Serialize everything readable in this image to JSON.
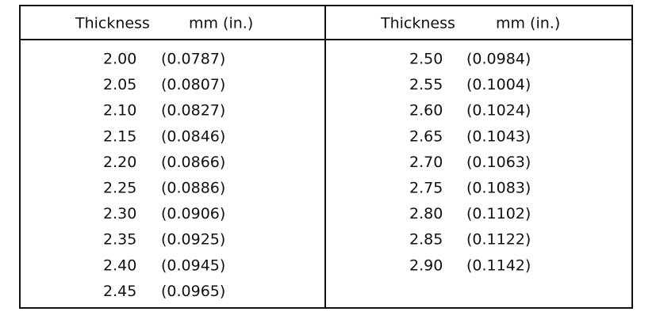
{
  "table": {
    "columns": [
      {
        "header": [
          "Thickness",
          "mm (in.)"
        ],
        "rows": [
          [
            "2.00",
            "(0.0787)"
          ],
          [
            "2.05",
            "(0.0807)"
          ],
          [
            "2.10",
            "(0.0827)"
          ],
          [
            "2.15",
            "(0.0846)"
          ],
          [
            "2.20",
            "(0.0866)"
          ],
          [
            "2.25",
            "(0.0886)"
          ],
          [
            "2.30",
            "(0.0906)"
          ],
          [
            "2.35",
            "(0.0925)"
          ],
          [
            "2.40",
            "(0.0945)"
          ],
          [
            "2.45",
            "(0.0965)"
          ]
        ]
      },
      {
        "header": [
          "Thickness",
          "mm (in.)"
        ],
        "rows": [
          [
            "2.50",
            "(0.0984)"
          ],
          [
            "2.55",
            "(0.1004)"
          ],
          [
            "2.60",
            "(0.1024)"
          ],
          [
            "2.65",
            "(0.1043)"
          ],
          [
            "2.70",
            "(0.1063)"
          ],
          [
            "2.75",
            "(0.1083)"
          ],
          [
            "2.80",
            "(0.1102)"
          ],
          [
            "2.85",
            "(0.1122)"
          ],
          [
            "2.90",
            "(0.1142)"
          ]
        ]
      }
    ]
  }
}
